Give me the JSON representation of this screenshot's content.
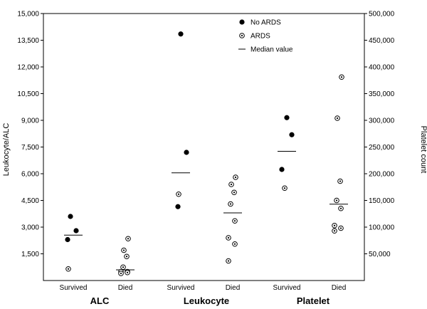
{
  "chart_data": {
    "type": "scatter",
    "y_left": {
      "label": "Leukocyte/ALC",
      "range": [
        0,
        15000
      ],
      "ticks": [
        1500,
        3000,
        4500,
        6000,
        7500,
        9000,
        10500,
        12000,
        13500,
        15000
      ],
      "tick_labels": [
        "1,500",
        "3,000",
        "4,500",
        "6,000",
        "7,500",
        "9,000",
        "10,500",
        "12,000",
        "13,500",
        "15,000"
      ]
    },
    "y_right": {
      "label": "Platelet count",
      "range": [
        0,
        500000
      ],
      "ticks": [
        50000,
        100000,
        150000,
        200000,
        250000,
        300000,
        350000,
        400000,
        450000,
        500000
      ],
      "tick_labels": [
        "50,000",
        "100,000",
        "150,000",
        "200,000",
        "250,000",
        "300,000",
        "350,000",
        "400,000",
        "450,000",
        "500,000"
      ]
    },
    "legend": {
      "placement": "top-center",
      "entries": [
        {
          "marker": "filled-circle",
          "label": "No ARDS"
        },
        {
          "marker": "open-circle-dot",
          "label": "ARDS"
        },
        {
          "marker": "line",
          "label": "Median value"
        }
      ]
    },
    "groups": [
      {
        "name": "ALC",
        "axis": "left",
        "categories": [
          {
            "label": "Survived",
            "no_ards": [
              3600,
              2800,
              2300
            ],
            "ards": [
              650
            ],
            "median": 2550
          },
          {
            "label": "Died",
            "no_ards": [],
            "ards": [
              2350,
              1700,
              1350,
              750,
              500,
              500,
              450,
              400
            ],
            "median": 600
          }
        ]
      },
      {
        "name": "Leukocyte",
        "axis": "left",
        "categories": [
          {
            "label": "Survived",
            "no_ards": [
              13850,
              7200,
              4150
            ],
            "ards": [
              4850
            ],
            "median": 6050
          },
          {
            "label": "Died",
            "no_ards": [],
            "ards": [
              5800,
              5400,
              4950,
              4300,
              3350,
              2400,
              2050,
              1100
            ],
            "median": 3800
          }
        ]
      },
      {
        "name": "Platelet",
        "axis": "right",
        "categories": [
          {
            "label": "Survived",
            "no_ards": [
              305000,
              273000,
              208000
            ],
            "ards": [
              173000
            ],
            "median": 242000
          },
          {
            "label": "Died",
            "no_ards": [],
            "ards": [
              381000,
              304000,
              186000,
              150000,
              135000,
              103000,
              98000,
              93000
            ],
            "median": 143000
          }
        ]
      }
    ]
  }
}
